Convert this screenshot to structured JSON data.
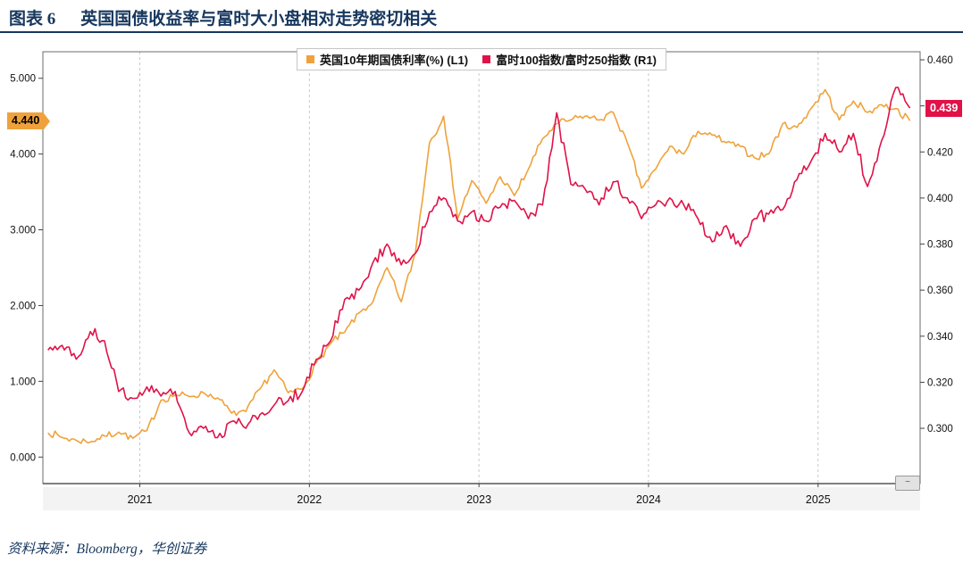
{
  "page": {
    "title_prefix": "图表 6",
    "title": "英国国债收益率与富时大小盘相对走势密切相关",
    "source": "资料来源：Bloomberg，华创证券"
  },
  "colors": {
    "title_navy": "#17375E",
    "gilt_orange": "#EFA23B",
    "ratio_crimson": "#E01248"
  },
  "chart_data": {
    "type": "line",
    "title": "英国国债收益率与富时大小盘相对走势密切相关",
    "legend_position": "top-center",
    "grid": {
      "vertical_dashed_at_years": true,
      "horizontal": false
    },
    "x_year_labels": [
      "2021",
      "2022",
      "2023",
      "2024",
      "2025"
    ],
    "x_months": [
      "2020-06",
      "2020-07",
      "2020-08",
      "2020-09",
      "2020-10",
      "2020-11",
      "2020-12",
      "2021-01",
      "2021-02",
      "2021-03",
      "2021-04",
      "2021-05",
      "2021-06",
      "2021-07",
      "2021-08",
      "2021-09",
      "2021-10",
      "2021-11",
      "2021-12",
      "2022-01",
      "2022-02",
      "2022-03",
      "2022-04",
      "2022-05",
      "2022-06",
      "2022-07",
      "2022-08",
      "2022-09",
      "2022-10",
      "2022-11",
      "2022-12",
      "2023-01",
      "2023-02",
      "2023-03",
      "2023-04",
      "2023-05",
      "2023-06",
      "2023-07",
      "2023-08",
      "2023-09",
      "2023-10",
      "2023-11",
      "2023-12",
      "2024-01",
      "2024-02",
      "2024-03",
      "2024-04",
      "2024-05",
      "2024-06",
      "2024-07",
      "2024-08",
      "2024-09",
      "2024-10",
      "2024-11",
      "2024-12",
      "2025-01",
      "2025-02",
      "2025-03",
      "2025-04",
      "2025-05",
      "2025-06",
      "2025-07"
    ],
    "left_axis": {
      "ticks": [
        0,
        1,
        2,
        3,
        4,
        5
      ],
      "tick_labels": [
        "0.000",
        "1.000",
        "2.000",
        "3.000",
        "4.000",
        "5.000"
      ],
      "range": [
        -0.35,
        5.35
      ]
    },
    "right_axis": {
      "ticks": [
        0.3,
        0.32,
        0.34,
        0.36,
        0.38,
        0.4,
        0.42,
        0.44,
        0.46
      ],
      "tick_labels": [
        "0.300",
        "0.320",
        "0.340",
        "0.360",
        "0.380",
        "0.400",
        "0.420",
        "0.440",
        "0.460"
      ],
      "range": [
        0.276,
        0.4635
      ]
    },
    "series": [
      {
        "name": "英国10年期国债利率(%) (L1)",
        "axis": "left",
        "color": "#EFA23B",
        "last_label": "4.440",
        "values": [
          0.32,
          0.26,
          0.22,
          0.2,
          0.28,
          0.33,
          0.25,
          0.35,
          0.75,
          0.82,
          0.8,
          0.85,
          0.78,
          0.58,
          0.6,
          0.9,
          1.15,
          0.85,
          0.9,
          1.25,
          1.5,
          1.65,
          1.9,
          2.05,
          2.5,
          2.05,
          2.7,
          4.15,
          4.5,
          3.15,
          3.65,
          3.35,
          3.7,
          3.45,
          3.8,
          4.2,
          4.4,
          4.45,
          4.5,
          4.45,
          4.55,
          4.15,
          3.55,
          3.8,
          4.1,
          4.0,
          4.3,
          4.25,
          4.15,
          4.1,
          3.95,
          4.0,
          4.4,
          4.35,
          4.6,
          4.85,
          4.45,
          4.7,
          4.55,
          4.65,
          4.6,
          4.44
        ]
      },
      {
        "name": "富时100指数/富时250指数 (R1)",
        "axis": "right",
        "color": "#E01248",
        "last_label": "0.439",
        "values": [
          0.334,
          0.336,
          0.33,
          0.342,
          0.338,
          0.316,
          0.313,
          0.318,
          0.314,
          0.316,
          0.298,
          0.3,
          0.296,
          0.303,
          0.3,
          0.306,
          0.31,
          0.312,
          0.316,
          0.33,
          0.338,
          0.356,
          0.36,
          0.372,
          0.38,
          0.371,
          0.376,
          0.394,
          0.4,
          0.39,
          0.394,
          0.39,
          0.396,
          0.399,
          0.391,
          0.397,
          0.437,
          0.406,
          0.404,
          0.397,
          0.407,
          0.4,
          0.391,
          0.397,
          0.4,
          0.397,
          0.391,
          0.381,
          0.388,
          0.379,
          0.391,
          0.393,
          0.395,
          0.408,
          0.416,
          0.428,
          0.42,
          0.428,
          0.405,
          0.425,
          0.448,
          0.439
        ]
      }
    ]
  }
}
